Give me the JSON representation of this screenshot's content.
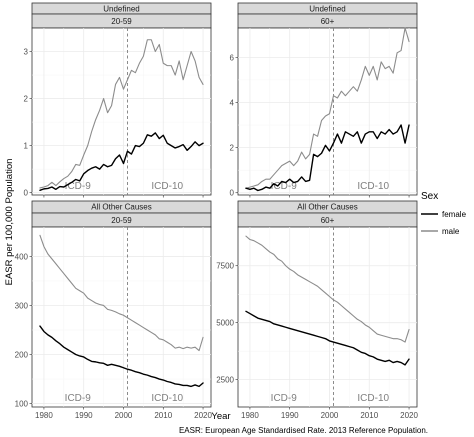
{
  "chart_data": {
    "type": "line",
    "facet_rows": [
      {
        "strip": "Undefined"
      },
      {
        "strip": "All Other Causes"
      }
    ],
    "facet_cols": [
      {
        "strip": "20-59"
      },
      {
        "strip": "60+"
      }
    ],
    "xlabel": "Year",
    "ylabel": "EASR per 100,000 Population",
    "caption": "EASR: European Age Standardised Rate. 2013 Reference Population.",
    "legend": {
      "title": "Sex",
      "position": "right",
      "items": [
        {
          "label": "female",
          "color": "#000000"
        },
        {
          "label": "male",
          "color": "#8c8c8c"
        }
      ]
    },
    "x_ticks": [
      1980,
      1990,
      2000,
      2010,
      2020
    ],
    "xlim": [
      1977,
      2022
    ],
    "icd_change_year": 2001,
    "icd_labels": [
      "ICD-9",
      "ICD-10"
    ],
    "panels": [
      {
        "row": 0,
        "col": 0,
        "ylim": [
          -0.05,
          3.5
        ],
        "y_ticks": [
          0,
          1,
          2,
          3
        ],
        "series": [
          {
            "name": "female",
            "x": [
              1979,
              1980,
              1981,
              1982,
              1983,
              1984,
              1985,
              1986,
              1987,
              1988,
              1989,
              1990,
              1991,
              1992,
              1993,
              1994,
              1995,
              1996,
              1997,
              1998,
              1999,
              2000,
              2001,
              2002,
              2003,
              2004,
              2005,
              2006,
              2007,
              2008,
              2009,
              2010,
              2011,
              2012,
              2013,
              2014,
              2015,
              2016,
              2017,
              2018,
              2019,
              2020
            ],
            "y": [
              0.05,
              0.08,
              0.09,
              0.12,
              0.07,
              0.13,
              0.12,
              0.17,
              0.22,
              0.28,
              0.25,
              0.4,
              0.47,
              0.52,
              0.55,
              0.5,
              0.6,
              0.55,
              0.58,
              0.72,
              0.8,
              0.62,
              0.88,
              0.82,
              1.0,
              0.98,
              1.05,
              1.23,
              1.2,
              1.27,
              1.15,
              1.22,
              1.05,
              1.0,
              0.95,
              0.98,
              1.02,
              0.9,
              0.98,
              1.08,
              1.0,
              1.05
            ]
          },
          {
            "name": "male",
            "x": [
              1979,
              1980,
              1981,
              1982,
              1983,
              1984,
              1985,
              1986,
              1987,
              1988,
              1989,
              1990,
              1991,
              1992,
              1993,
              1994,
              1995,
              1996,
              1997,
              1998,
              1999,
              2000,
              2001,
              2002,
              2003,
              2004,
              2005,
              2006,
              2007,
              2008,
              2009,
              2010,
              2011,
              2012,
              2013,
              2014,
              2015,
              2016,
              2017,
              2018,
              2019,
              2020
            ],
            "y": [
              0.1,
              0.12,
              0.15,
              0.22,
              0.15,
              0.23,
              0.3,
              0.35,
              0.45,
              0.6,
              0.58,
              0.8,
              1.0,
              1.3,
              1.55,
              1.75,
              2.0,
              1.7,
              1.85,
              2.3,
              2.45,
              2.2,
              2.4,
              2.6,
              2.55,
              2.75,
              2.9,
              3.25,
              3.25,
              3.0,
              3.15,
              2.75,
              2.7,
              2.7,
              2.5,
              2.8,
              2.4,
              2.7,
              3.0,
              2.8,
              2.45,
              2.3
            ]
          }
        ]
      },
      {
        "row": 0,
        "col": 1,
        "ylim": [
          -0.1,
          7.3
        ],
        "y_ticks": [
          0,
          2,
          4,
          6
        ],
        "series": [
          {
            "name": "female",
            "x": [
              1979,
              1980,
              1981,
              1982,
              1983,
              1984,
              1985,
              1986,
              1987,
              1988,
              1989,
              1990,
              1991,
              1992,
              1993,
              1994,
              1995,
              1996,
              1997,
              1998,
              1999,
              2000,
              2001,
              2002,
              2003,
              2004,
              2005,
              2006,
              2007,
              2008,
              2009,
              2010,
              2011,
              2012,
              2013,
              2014,
              2015,
              2016,
              2017,
              2018,
              2019,
              2020
            ],
            "y": [
              0.2,
              0.15,
              0.2,
              0.1,
              0.15,
              0.25,
              0.2,
              0.4,
              0.3,
              0.5,
              0.45,
              0.6,
              0.45,
              0.5,
              0.7,
              0.5,
              0.55,
              1.7,
              1.6,
              1.75,
              2.1,
              1.85,
              2.2,
              2.6,
              2.2,
              2.7,
              2.6,
              2.5,
              2.7,
              2.2,
              2.6,
              2.7,
              2.7,
              2.4,
              2.7,
              2.6,
              2.8,
              2.6,
              2.7,
              3.0,
              2.2,
              3.0
            ]
          },
          {
            "name": "male",
            "x": [
              1979,
              1980,
              1981,
              1982,
              1983,
              1984,
              1985,
              1986,
              1987,
              1988,
              1989,
              1990,
              1991,
              1992,
              1993,
              1994,
              1995,
              1996,
              1997,
              1998,
              1999,
              2000,
              2001,
              2002,
              2003,
              2004,
              2005,
              2006,
              2007,
              2008,
              2009,
              2010,
              2011,
              2012,
              2013,
              2014,
              2015,
              2016,
              2017,
              2018,
              2019,
              2020
            ],
            "y": [
              0.2,
              0.25,
              0.3,
              0.35,
              0.5,
              0.6,
              0.6,
              0.8,
              1.0,
              1.2,
              1.3,
              1.4,
              1.2,
              1.4,
              1.8,
              1.5,
              1.7,
              2.6,
              2.5,
              3.2,
              3.4,
              3.5,
              4.3,
              4.2,
              4.5,
              4.3,
              4.5,
              4.7,
              4.5,
              5.0,
              5.6,
              5.2,
              5.6,
              5.0,
              5.8,
              5.5,
              5.6,
              5.3,
              6.2,
              6.3,
              7.3,
              6.7
            ]
          }
        ]
      },
      {
        "row": 1,
        "col": 0,
        "ylim": [
          93,
          460
        ],
        "y_ticks": [
          100,
          200,
          300,
          400
        ],
        "series": [
          {
            "name": "female",
            "x": [
              1979,
              1980,
              1981,
              1982,
              1983,
              1984,
              1985,
              1986,
              1987,
              1988,
              1989,
              1990,
              1991,
              1992,
              1993,
              1994,
              1995,
              1996,
              1997,
              1998,
              1999,
              2000,
              2001,
              2002,
              2003,
              2004,
              2005,
              2006,
              2007,
              2008,
              2009,
              2010,
              2011,
              2012,
              2013,
              2014,
              2015,
              2016,
              2017,
              2018,
              2019,
              2020
            ],
            "y": [
              258,
              247,
              240,
              235,
              228,
              222,
              215,
              210,
              205,
              200,
              197,
              195,
              190,
              186,
              185,
              183,
              182,
              178,
              180,
              178,
              176,
              173,
              170,
              168,
              165,
              163,
              160,
              158,
              155,
              153,
              150,
              148,
              145,
              143,
              140,
              139,
              137,
              137,
              135,
              138,
              135,
              142
            ]
          },
          {
            "name": "male",
            "x": [
              1979,
              1980,
              1981,
              1982,
              1983,
              1984,
              1985,
              1986,
              1987,
              1988,
              1989,
              1990,
              1991,
              1992,
              1993,
              1994,
              1995,
              1996,
              1997,
              1998,
              1999,
              2000,
              2001,
              2002,
              2003,
              2004,
              2005,
              2006,
              2007,
              2008,
              2009,
              2010,
              2011,
              2012,
              2013,
              2014,
              2015,
              2016,
              2017,
              2018,
              2019,
              2020
            ],
            "y": [
              443,
              420,
              405,
              395,
              385,
              375,
              365,
              355,
              345,
              335,
              330,
              325,
              315,
              310,
              305,
              302,
              300,
              292,
              290,
              287,
              283,
              280,
              275,
              270,
              265,
              260,
              255,
              250,
              245,
              240,
              232,
              230,
              225,
              220,
              213,
              215,
              212,
              215,
              213,
              215,
              208,
              235
            ]
          }
        ]
      },
      {
        "row": 1,
        "col": 1,
        "ylim": [
          1300,
          9200
        ],
        "y_ticks": [
          2500,
          5000,
          7500
        ],
        "series": [
          {
            "name": "female",
            "x": [
              1979,
              1980,
              1981,
              1982,
              1983,
              1984,
              1985,
              1986,
              1987,
              1988,
              1989,
              1990,
              1991,
              1992,
              1993,
              1994,
              1995,
              1996,
              1997,
              1998,
              1999,
              2000,
              2001,
              2002,
              2003,
              2004,
              2005,
              2006,
              2007,
              2008,
              2009,
              2010,
              2011,
              2012,
              2013,
              2014,
              2015,
              2016,
              2017,
              2018,
              2019,
              2020
            ],
            "y": [
              5500,
              5400,
              5300,
              5200,
              5150,
              5100,
              5050,
              4950,
              4900,
              4850,
              4800,
              4750,
              4700,
              4650,
              4600,
              4550,
              4500,
              4450,
              4400,
              4350,
              4300,
              4200,
              4150,
              4100,
              4050,
              4000,
              3950,
              3900,
              3800,
              3700,
              3650,
              3550,
              3500,
              3400,
              3350,
              3300,
              3350,
              3250,
              3300,
              3250,
              3150,
              3400
            ]
          },
          {
            "name": "male",
            "x": [
              1979,
              1980,
              1981,
              1982,
              1983,
              1984,
              1985,
              1986,
              1987,
              1988,
              1989,
              1990,
              1991,
              1992,
              1993,
              1994,
              1995,
              1996,
              1997,
              1998,
              1999,
              2000,
              2001,
              2002,
              2003,
              2004,
              2005,
              2006,
              2007,
              2008,
              2009,
              2010,
              2011,
              2012,
              2013,
              2014,
              2015,
              2016,
              2017,
              2018,
              2019,
              2020
            ],
            "y": [
              8800,
              8650,
              8600,
              8500,
              8400,
              8250,
              8100,
              8000,
              7800,
              7700,
              7500,
              7350,
              7250,
              7100,
              7000,
              6900,
              6800,
              6700,
              6600,
              6450,
              6300,
              6150,
              6000,
              5900,
              5750,
              5600,
              5450,
              5300,
              5150,
              5050,
              4900,
              4800,
              4650,
              4500,
              4450,
              4400,
              4350,
              4300,
              4300,
              4250,
              4150,
              4700
            ]
          }
        ]
      }
    ]
  }
}
